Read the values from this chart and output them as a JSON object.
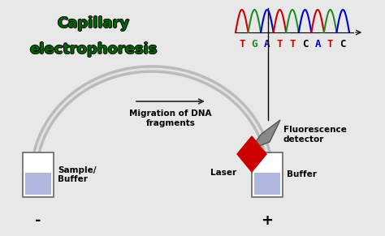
{
  "bg_color": "#e8e8e8",
  "title_line1": "Capillary",
  "title_line2": "electrophoresis",
  "title_color": "#006400",
  "title_outline_color": "#000000",
  "title_fontsize": 13,
  "migration_label": "Migration of DNA\nfragments",
  "laser_label": "Laser",
  "fluorescence_label": "Fluorescence\ndetector",
  "sample_label": "Sample/\nBuffer",
  "buffer_label": "Buffer",
  "minus_label": "-",
  "plus_label": "+",
  "dna_seq": "TGATTCATC",
  "T_color": "#cc0000",
  "G_color": "#228B22",
  "A_color": "#0000cc",
  "C_color": "#000000",
  "capillary_color": "#bbbbbb",
  "container_fill": "#c8cce8",
  "container_edge": "#666666",
  "liquid_color": "#b0b8e0",
  "laser_color": "#cc0000",
  "detector_color": "#888888",
  "arrow_color": "#333333",
  "label_fontsize": 7.5,
  "seq_fontsize": 9,
  "wave_colors": [
    "#cc0000",
    "#228B22",
    "#0000cc",
    "#cc0000",
    "#228B22",
    "#0000cc",
    "#cc0000",
    "#228B22",
    "#0000cc"
  ]
}
